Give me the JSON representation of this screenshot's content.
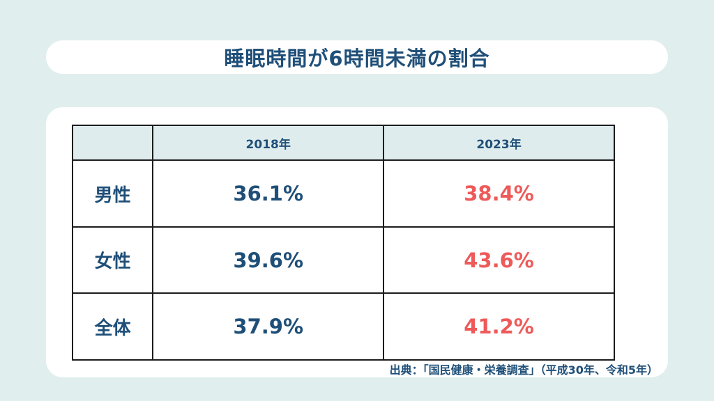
{
  "title": "睡眠時間が6時間未満の割合",
  "table": {
    "columns": [
      "",
      "2018年",
      "2023年"
    ],
    "rows": [
      {
        "label": "男性",
        "y2018": "36.1%",
        "y2023": "38.4%"
      },
      {
        "label": "女性",
        "y2018": "39.6%",
        "y2023": "43.6%"
      },
      {
        "label": "全体",
        "y2018": "37.9%",
        "y2023": "41.2%"
      }
    ]
  },
  "source": "出典：「国民健康・栄養調査」（平成30年、令和5年）",
  "colors": {
    "background": "#e1eeee",
    "navy": "#1f4f78",
    "accent_red": "#ee5a5a",
    "header_fill": "#dfeced"
  }
}
